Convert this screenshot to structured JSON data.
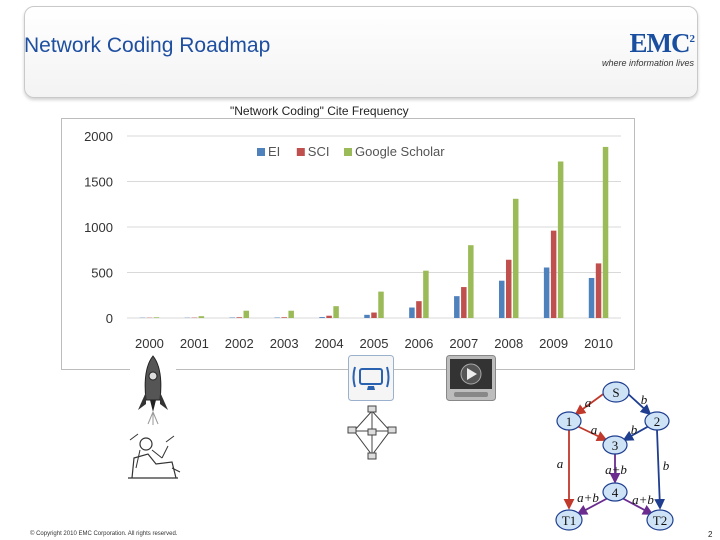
{
  "header": {
    "title": "Network Coding Roadmap",
    "logo": "EMC",
    "logo_sup": "2",
    "logo_tagline": "where information lives"
  },
  "chart_data": {
    "type": "bar",
    "title": "\"Network Coding\" Cite Frequency",
    "categories": [
      "2000",
      "2001",
      "2002",
      "2003",
      "2004",
      "2005",
      "2006",
      "2007",
      "2008",
      "2009",
      "2010"
    ],
    "series": [
      {
        "name": "EI",
        "color": "#4f81bd",
        "values": [
          3,
          3,
          5,
          5,
          10,
          35,
          115,
          240,
          410,
          555,
          440
        ]
      },
      {
        "name": "SCI",
        "color": "#c0504d",
        "values": [
          3,
          4,
          8,
          8,
          25,
          60,
          185,
          340,
          640,
          960,
          600
        ]
      },
      {
        "name": "Google Scholar",
        "color": "#9bbb59",
        "values": [
          8,
          20,
          80,
          80,
          130,
          290,
          520,
          800,
          1310,
          1720,
          1880
        ]
      }
    ],
    "ylim": [
      0,
      2000
    ],
    "yticks": [
      0,
      500,
      1000,
      1500,
      2000
    ],
    "grid": "horizontal",
    "legend": "top-center"
  },
  "diagram": {
    "nodes": {
      "s": "S",
      "n1": "1",
      "n2": "2",
      "n3": "3",
      "n4": "4",
      "t1": "T1",
      "t2": "T2"
    },
    "labels": {
      "a": "a",
      "b": "b",
      "ab": "a+b"
    }
  },
  "footer": {
    "copyright": "© Copyright 2010 EMC Corporation. All rights reserved.",
    "page": "2"
  }
}
